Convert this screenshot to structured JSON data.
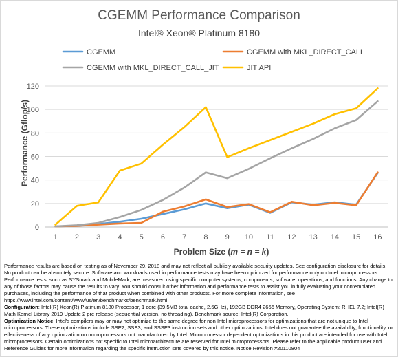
{
  "chart_data": {
    "type": "line",
    "title": "CGEMM Performance Comparison",
    "subtitle": "Intel® Xeon® Platinum 8180",
    "xlabel_prefix": "Problem Size (",
    "xlabel_vars": "m = n = k",
    "xlabel_suffix": ")",
    "ylabel": "Performance (Gflop/s)",
    "x": [
      1,
      2,
      3,
      4,
      5,
      6,
      7,
      8,
      9,
      10,
      11,
      12,
      13,
      14,
      15,
      16
    ],
    "ylim": [
      0,
      120
    ],
    "yticks": [
      0,
      20,
      40,
      60,
      80,
      100,
      120
    ],
    "grid": true,
    "legend_position": "top",
    "series": [
      {
        "name": "CGEMM",
        "color": "#5b9bd5",
        "values": [
          0.5,
          1.0,
          2.5,
          4.5,
          7,
          11,
          15,
          20,
          16,
          19,
          12,
          21,
          19,
          21,
          19,
          46
        ]
      },
      {
        "name": "CGEMM with MKL_DIRECT_CALL",
        "color": "#ed7d31",
        "values": [
          0.5,
          1.0,
          2.0,
          3.0,
          3.5,
          13,
          17.5,
          23.5,
          17,
          19.5,
          12.5,
          21.5,
          18.5,
          20.5,
          18.5,
          46.5
        ]
      },
      {
        "name": "CGEMM with MKL_DIRECT_CALL_JIT",
        "color": "#a5a5a5",
        "values": [
          0.5,
          1.5,
          3.5,
          8.5,
          14.5,
          23,
          33.5,
          46.5,
          41.5,
          49.5,
          58.5,
          67,
          75,
          84,
          91,
          107
        ]
      },
      {
        "name": "JIT API",
        "color": "#ffc000",
        "values": [
          2,
          18,
          21,
          48,
          54,
          70,
          85,
          102,
          59.5,
          67,
          74,
          81,
          88,
          96,
          101,
          118
        ]
      }
    ]
  },
  "notes": [
    {
      "bold": "",
      "text": "Performance results are based on testing as of November 29, 2018 and may not reflect all publicly available security updates. See configuration disclosure for details. No product can be absolutely secure. Software and workloads used in performance tests may have been optimized for performance only on Intel microprocessors. Performance tests, such as SYSmark and MobileMark, are measured using specific computer systems, components, software, operations, and functions. Any change to any of those factors may cause the results to vary. You should consult other information and performance tests to assist you in fully evaluating your contemplated purchases, including the performance of that product when combined with other products. For more complete information, see https://www.intel.com/content/www/us/en/benchmarks/benchmark.html"
    },
    {
      "bold": "Configuration",
      "text": ": Intel(R) Xeon(R) Platinum 8180 Processor, 1 core (39.5MB total cache, 2.5GHz), 192GB DDR4 2666 Memory, Operating System: RHEL 7.2; Intel(R) Math Kernel Library 2019 Update 2 pre release (sequential version, no threading). Benchmark source: Intel(R) Corporation."
    },
    {
      "bold": "Optimization Notice",
      "text": ": Intel's compilers may or may not optimize to the same degree for non Intel microprocessors for optimizations that are not unique to Intel microprocessors. These optimizations include SSE2, SSE3, and SSSE3 instruction sets and other optimizations. Intel does not guarantee the availability, functionality, or effectiveness of any optimization on microprocessors not manufactured by Intel. Microprocessor dependent optimizations in this product are intended for use with Intel microprocessors. Certain optimizations not specific to Intel microarchitecture are reserved for Intel microprocessors. Please refer to the applicable product User and Reference Guides for more information regarding the specific instruction sets covered by this notice. Notice Revision #20110804"
    }
  ]
}
